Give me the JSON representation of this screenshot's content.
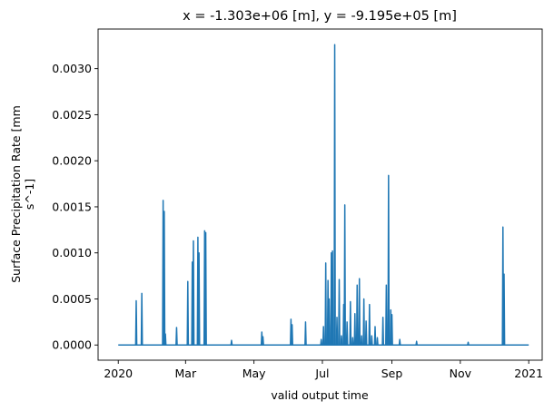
{
  "chart_data": {
    "type": "line",
    "title": "x = -1.303e+06 [m], y = -9.195e+05 [m]",
    "xlabel": "valid output time",
    "ylabel_lines": [
      "Surface Precipitation Rate [mm",
      "s^-1]"
    ],
    "x_ticks": [
      {
        "label": "2020",
        "day": 0
      },
      {
        "label": "Mar",
        "day": 60
      },
      {
        "label": "May",
        "day": 121
      },
      {
        "label": "Jul",
        "day": 182
      },
      {
        "label": "Sep",
        "day": 244
      },
      {
        "label": "Nov",
        "day": 305
      },
      {
        "label": "2021",
        "day": 366
      }
    ],
    "y_ticks": [
      "0.0000",
      "0.0005",
      "0.0010",
      "0.0015",
      "0.0020",
      "0.0025",
      "0.0030"
    ],
    "y_tick_values": [
      0,
      0.0005,
      0.001,
      0.0015,
      0.002,
      0.0025,
      0.003
    ],
    "xlim": [
      -18,
      378
    ],
    "ylim": [
      -0.000165,
      0.00343
    ],
    "grid": false,
    "series": [
      {
        "color": "#1f77b4",
        "peaks": [
          [
            16,
            0.00048
          ],
          [
            21,
            0.00056
          ],
          [
            40,
            0.00157
          ],
          [
            41,
            0.00145
          ],
          [
            42,
            0.00012
          ],
          [
            52,
            0.00019
          ],
          [
            62,
            0.00069
          ],
          [
            66,
            0.0009
          ],
          [
            67,
            0.00113
          ],
          [
            71,
            0.00117
          ],
          [
            72,
            0.001
          ],
          [
            77,
            0.00124
          ],
          [
            78,
            0.00122
          ],
          [
            101,
            5e-05
          ],
          [
            128,
            0.00014
          ],
          [
            129,
            9e-05
          ],
          [
            154,
            0.00028
          ],
          [
            155,
            0.00022
          ],
          [
            167,
            0.00025
          ],
          [
            181,
            6e-05
          ],
          [
            183,
            0.0002
          ],
          [
            185,
            0.00089
          ],
          [
            187,
            0.0007
          ],
          [
            188,
            0.0005
          ],
          [
            190,
            0.001
          ],
          [
            191,
            0.00102
          ],
          [
            193,
            0.00326
          ],
          [
            195,
            0.0003
          ],
          [
            197,
            0.00071
          ],
          [
            199,
            0.0001
          ],
          [
            201,
            0.00044
          ],
          [
            202,
            0.00152
          ],
          [
            204,
            0.00025
          ],
          [
            207,
            0.00047
          ],
          [
            209,
            8e-05
          ],
          [
            211,
            0.00034
          ],
          [
            213,
            0.00065
          ],
          [
            215,
            0.00072
          ],
          [
            217,
            0.0001
          ],
          [
            219,
            0.0005
          ],
          [
            221,
            0.00026
          ],
          [
            224,
            0.00044
          ],
          [
            226,
            0.0001
          ],
          [
            229,
            0.0002
          ],
          [
            231,
            8e-05
          ],
          [
            236,
            0.0003
          ],
          [
            239,
            0.00065
          ],
          [
            241,
            0.00184
          ],
          [
            243,
            0.00038
          ],
          [
            244,
            0.00033
          ],
          [
            251,
            6e-05
          ],
          [
            266,
            4e-05
          ],
          [
            312,
            3e-05
          ],
          [
            343,
            0.00128
          ],
          [
            344,
            0.00077
          ]
        ]
      }
    ]
  }
}
